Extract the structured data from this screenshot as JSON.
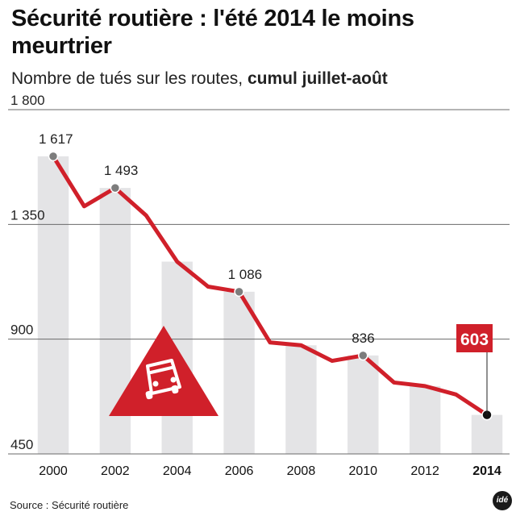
{
  "title": "Sécurité routière : l'été 2014 le moins meurtrier",
  "subtitle_prefix": "Nombre de tués sur les routes, ",
  "subtitle_bold": "cumul juillet-août",
  "source": "Source : Sécurité routière",
  "logo_text": "idé",
  "colors": {
    "line": "#d0202a",
    "column": "#e4e4e6",
    "warning_sign": "#d0202a",
    "marker": "#7d7d7d",
    "last_marker": "#111111"
  },
  "icons": {
    "warning": "car-warning-triangle-icon"
  },
  "chart_data": {
    "type": "line",
    "title": "Sécurité routière : l'été 2014 le moins meurtrier",
    "subtitle": "Nombre de tués sur les routes, cumul juillet-août",
    "xlabel": "",
    "ylabel": "",
    "x": [
      2000,
      2001,
      2002,
      2003,
      2004,
      2005,
      2006,
      2007,
      2008,
      2009,
      2010,
      2011,
      2012,
      2013,
      2014
    ],
    "values": [
      1617,
      1421,
      1493,
      1385,
      1204,
      1106,
      1086,
      887,
      876,
      815,
      836,
      730,
      716,
      683,
      603
    ],
    "ylim": [
      450,
      1800
    ],
    "yticks": [
      "1 800",
      "1 350",
      "900",
      "450"
    ],
    "ytick_values": [
      1800,
      1350,
      900,
      450
    ],
    "xticks": [
      "2000",
      "2002",
      "2004",
      "2006",
      "2008",
      "2010",
      "2012",
      "2014"
    ],
    "xtick_values": [
      2000,
      2002,
      2004,
      2006,
      2008,
      2010,
      2012,
      2014
    ],
    "annotations": [
      {
        "year": 2000,
        "text": "1 617"
      },
      {
        "year": 2002,
        "text": "1 493"
      },
      {
        "year": 2006,
        "text": "1 086"
      },
      {
        "year": 2010,
        "text": "836"
      }
    ],
    "highlight": {
      "year": 2014,
      "text": "603"
    },
    "grid": true,
    "alternating_year_columns": true
  }
}
